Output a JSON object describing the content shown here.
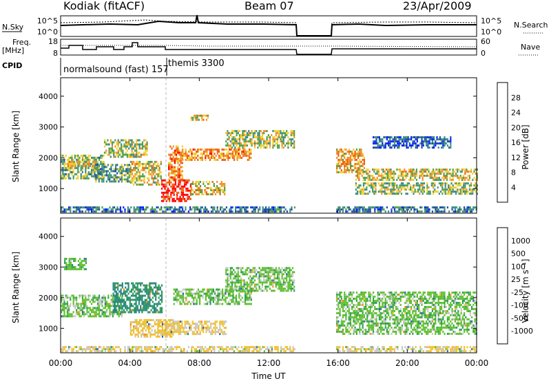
{
  "header": {
    "radar": "Kodiak (fitACF)",
    "beam": "Beam 07",
    "date": "23/Apr/2009"
  },
  "strips": {
    "nsky_label": "N.Sky",
    "nsky_ticks": [
      "10^5",
      "10^0"
    ],
    "nsearch_label": "N.Search",
    "nsearch_ticks": [
      "10^5",
      "10^0"
    ],
    "freq_label_line1": "Freq.",
    "freq_label_line2": "[MHz]",
    "freq_ticks": [
      "18",
      "8"
    ],
    "nave_label": "Nave",
    "nave_ticks": [
      "60",
      "0"
    ],
    "cpid_label": "CPID",
    "cpid_programs": [
      {
        "name": "normalsound (fast) 157",
        "start_hour": 0
      },
      {
        "name": "themis 3300",
        "start_hour": 6
      }
    ]
  },
  "panels": {
    "ylabel": "Slant Range [km]",
    "yticks": [
      "1000",
      "2000",
      "3000",
      "4000"
    ],
    "ylim": [
      200,
      4600
    ],
    "xticks": [
      "00:00",
      "04:00",
      "08:00",
      "12:00",
      "16:00",
      "20:00",
      "00:00"
    ],
    "xlabel": "Time UT",
    "xlim_hours": [
      0,
      24
    ]
  },
  "colorbars": {
    "power": {
      "label": "Power [dB]",
      "ticks": [
        "4",
        "8",
        "12",
        "16",
        "20",
        "24",
        "28"
      ],
      "colors": [
        "#0020ff",
        "#2050a0",
        "#3a8a8a",
        "#50a050",
        "#f0d030",
        "#f09030",
        "#f06010",
        "#ff0000"
      ]
    },
    "velocity": {
      "label": "Velocity [m s⁻¹]",
      "ticks": [
        "1000",
        "500",
        "100",
        "25",
        "-25",
        "-100",
        "-500",
        "-1000"
      ],
      "colors": [
        "#2030b0",
        "#3060c0",
        "#2a8a7a",
        "#30a050",
        "#60c030",
        "#c8c8c8",
        "#f0c030",
        "#f09020",
        "#f05010",
        "#ff0000"
      ]
    }
  },
  "chart_data": [
    {
      "type": "heatmap",
      "title": "Kodiak (fitACF) Beam 07 23/Apr/2009",
      "quantity": "Power",
      "unit": "dB",
      "xlabel": "Time UT",
      "ylabel": "Slant Range [km]",
      "xlim": [
        0,
        24
      ],
      "ylim": [
        200,
        4600
      ],
      "clim": [
        0,
        30
      ],
      "data_gap_hours": [
        13.5,
        15.9
      ],
      "regions": [
        {
          "t0": 0.0,
          "t1": 13.5,
          "r0": 250,
          "r1": 420,
          "value": 8
        },
        {
          "t0": 15.9,
          "t1": 24.0,
          "r0": 250,
          "r1": 420,
          "value": 8
        },
        {
          "t0": 0.0,
          "t1": 2.5,
          "r0": 1350,
          "r1": 2100,
          "value": 13
        },
        {
          "t0": 0.3,
          "t1": 2.0,
          "r0": 1700,
          "r1": 1900,
          "value": 18
        },
        {
          "t0": 2.0,
          "t1": 4.0,
          "r0": 1200,
          "r1": 1800,
          "value": 11
        },
        {
          "t0": 2.5,
          "t1": 5.0,
          "r0": 2000,
          "r1": 2600,
          "value": 15
        },
        {
          "t0": 4.0,
          "t1": 5.8,
          "r0": 1100,
          "r1": 1900,
          "value": 17
        },
        {
          "t0": 5.8,
          "t1": 7.5,
          "r0": 600,
          "r1": 1300,
          "value": 28
        },
        {
          "t0": 7.5,
          "t1": 9.5,
          "r0": 800,
          "r1": 1250,
          "value": 18
        },
        {
          "t0": 6.2,
          "t1": 7.0,
          "r0": 1300,
          "r1": 2400,
          "value": 22
        },
        {
          "t0": 7.0,
          "t1": 11.0,
          "r0": 1900,
          "r1": 2300,
          "value": 21
        },
        {
          "t0": 9.5,
          "t1": 13.5,
          "r0": 2300,
          "r1": 2900,
          "value": 15
        },
        {
          "t0": 7.5,
          "t1": 8.5,
          "r0": 3200,
          "r1": 3400,
          "value": 18
        },
        {
          "t0": 15.9,
          "t1": 17.5,
          "r0": 1500,
          "r1": 2300,
          "value": 20
        },
        {
          "t0": 17.0,
          "t1": 24.0,
          "r0": 1250,
          "r1": 1650,
          "value": 17
        },
        {
          "t0": 17.0,
          "t1": 24.0,
          "r0": 850,
          "r1": 1200,
          "value": 14
        },
        {
          "t0": 18.0,
          "t1": 22.5,
          "r0": 2300,
          "r1": 2700,
          "value": 6
        }
      ]
    },
    {
      "type": "heatmap",
      "quantity": "Velocity",
      "unit": "m s^-1",
      "xlabel": "Time UT",
      "ylabel": "Slant Range [km]",
      "xlim": [
        0,
        24
      ],
      "ylim": [
        200,
        4600
      ],
      "clim": [
        -1000,
        1000
      ],
      "data_gap_hours": [
        13.5,
        15.9
      ],
      "regions": [
        {
          "t0": 0.0,
          "t1": 13.5,
          "r0": 250,
          "r1": 420,
          "value": -60
        },
        {
          "t0": 15.9,
          "t1": 24.0,
          "r0": 250,
          "r1": 420,
          "value": -60
        },
        {
          "t0": 0.0,
          "t1": 3.5,
          "r0": 1400,
          "r1": 2100,
          "value": 0
        },
        {
          "t0": 3.0,
          "t1": 5.8,
          "r0": 1500,
          "r1": 2500,
          "value": 80
        },
        {
          "t0": 4.0,
          "t1": 6.5,
          "r0": 700,
          "r1": 1300,
          "value": -90
        },
        {
          "t0": 6.0,
          "t1": 9.5,
          "r0": 800,
          "r1": 1250,
          "value": -70
        },
        {
          "t0": 6.5,
          "t1": 11.0,
          "r0": 1800,
          "r1": 2300,
          "value": 0
        },
        {
          "t0": 9.5,
          "t1": 13.5,
          "r0": 2200,
          "r1": 3000,
          "value": 0
        },
        {
          "t0": 15.9,
          "t1": 24.0,
          "r0": 850,
          "r1": 2200,
          "value": 0
        },
        {
          "t0": 0.2,
          "t1": 1.5,
          "r0": 2900,
          "r1": 3300,
          "value": 20
        }
      ]
    }
  ]
}
